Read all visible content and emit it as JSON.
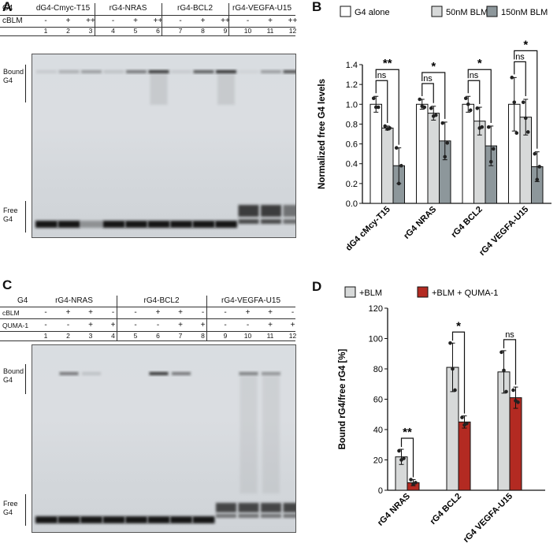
{
  "panelA": {
    "letter": "A",
    "row_g4": "G4",
    "row_cblm": "cBLM",
    "groups": [
      "dG4-Cmyc-T15",
      "rG4-NRAS",
      "rG4-BCL2",
      "rG4-VEGFA-U15"
    ],
    "cblm": [
      "-",
      "+",
      "++",
      "-",
      "+",
      "++",
      "-",
      "+",
      "++",
      "-",
      "+",
      "++"
    ],
    "lanes": [
      "1",
      "2",
      "3",
      "4",
      "5",
      "6",
      "7",
      "8",
      "9",
      "10",
      "11",
      "12"
    ],
    "bound_label": [
      "Bound",
      "G4"
    ],
    "free_label": [
      "Free",
      "G4"
    ]
  },
  "panelC": {
    "letter": "C",
    "row_g4": "G4",
    "row_cblm": "cBLM",
    "row_quma": "QUMA-1",
    "groups": [
      "rG4-NRAS",
      "rG4-BCL2",
      "rG4-VEGFA-U15"
    ],
    "cblm": [
      "-",
      "+",
      "+",
      "-",
      "-",
      "+",
      "+",
      "-",
      "-",
      "+",
      "+",
      "-"
    ],
    "quma": [
      "-",
      "-",
      "+",
      "+",
      "-",
      "-",
      "+",
      "+",
      "-",
      "-",
      "+",
      "+"
    ],
    "lanes": [
      "1",
      "2",
      "3",
      "4",
      "5",
      "6",
      "7",
      "8",
      "9",
      "10",
      "11",
      "12"
    ],
    "bound_label": [
      "Bound",
      "G4"
    ],
    "free_label": [
      "Free",
      "G4"
    ]
  },
  "panelB": {
    "letter": "B",
    "legend": [
      "G4 alone",
      "50nM BLM",
      "150nM BLM"
    ],
    "colors": [
      "#ffffff",
      "#d7d9d9",
      "#8d979b"
    ],
    "sig": [
      "**",
      "*",
      "*",
      "*"
    ],
    "ns": "ns"
  },
  "panelD": {
    "letter": "D",
    "legend": [
      "+BLM",
      "+BLM + QUMA-1"
    ],
    "colors": [
      "#d7d9d9",
      "#b32a22"
    ],
    "sig": [
      "**",
      "*",
      "ns"
    ]
  },
  "chart_data": [
    {
      "type": "bar",
      "ylabel": "Normalized free G4 levels",
      "ylim": [
        0,
        1.4
      ],
      "yticks": [
        "0.0",
        "0.2",
        "0.4",
        "0.6",
        "0.8",
        "1.0",
        "1.2",
        "1.4"
      ],
      "categories": [
        "dG4 cMcy-T15",
        "rG4 NRAS",
        "rG4 BCL2",
        "rG4 VEGFA-U15"
      ],
      "series": [
        {
          "name": "G4 alone",
          "values": [
            1.0,
            1.0,
            1.0,
            1.0
          ],
          "err": [
            0.08,
            0.05,
            0.08,
            0.27
          ]
        },
        {
          "name": "50nM BLM",
          "values": [
            0.76,
            0.91,
            0.83,
            0.87
          ],
          "err": [
            0.02,
            0.07,
            0.14,
            0.18
          ]
        },
        {
          "name": "150nM BLM",
          "values": [
            0.38,
            0.63,
            0.58,
            0.37
          ],
          "err": [
            0.18,
            0.19,
            0.2,
            0.15
          ]
        }
      ],
      "points": [
        [
          [
            1.06,
            0.97,
            0.97
          ],
          [
            0.78,
            0.75,
            0.76
          ],
          [
            0.56,
            0.2,
            0.38
          ]
        ],
        [
          [
            1.05,
            0.98,
            0.97
          ],
          [
            0.96,
            0.88,
            0.89
          ],
          [
            0.81,
            0.47,
            0.61
          ]
        ],
        [
          [
            1.06,
            1.0,
            0.94
          ],
          [
            0.96,
            0.76,
            0.77
          ],
          [
            0.77,
            0.42,
            0.55
          ]
        ],
        [
          [
            1.27,
            1.02,
            0.71
          ],
          [
            1.02,
            0.86,
            0.72
          ],
          [
            0.5,
            0.24,
            0.37
          ]
        ]
      ]
    },
    {
      "type": "bar",
      "ylabel": "Bound rG4/free rG4 [%]",
      "ylim": [
        0,
        120
      ],
      "yticks": [
        "0",
        "20",
        "40",
        "60",
        "80",
        "100",
        "120"
      ],
      "categories": [
        "rG4 NRAS",
        "rG4 BCL2",
        "rG4 VEGFA-U15"
      ],
      "series": [
        {
          "name": "+BLM",
          "values": [
            22,
            81,
            78
          ],
          "err": [
            5,
            16,
            14
          ]
        },
        {
          "name": "+BLM + QUMA-1",
          "values": [
            5,
            45,
            61
          ],
          "err": [
            2,
            4,
            7
          ]
        }
      ],
      "points": [
        [
          [
            26,
            20,
            21
          ],
          [
            7,
            4,
            5
          ]
        ],
        [
          [
            97,
            80,
            66
          ],
          [
            48,
            43,
            44
          ]
        ],
        [
          [
            91,
            79,
            65
          ],
          [
            66,
            59,
            58
          ]
        ]
      ]
    }
  ]
}
